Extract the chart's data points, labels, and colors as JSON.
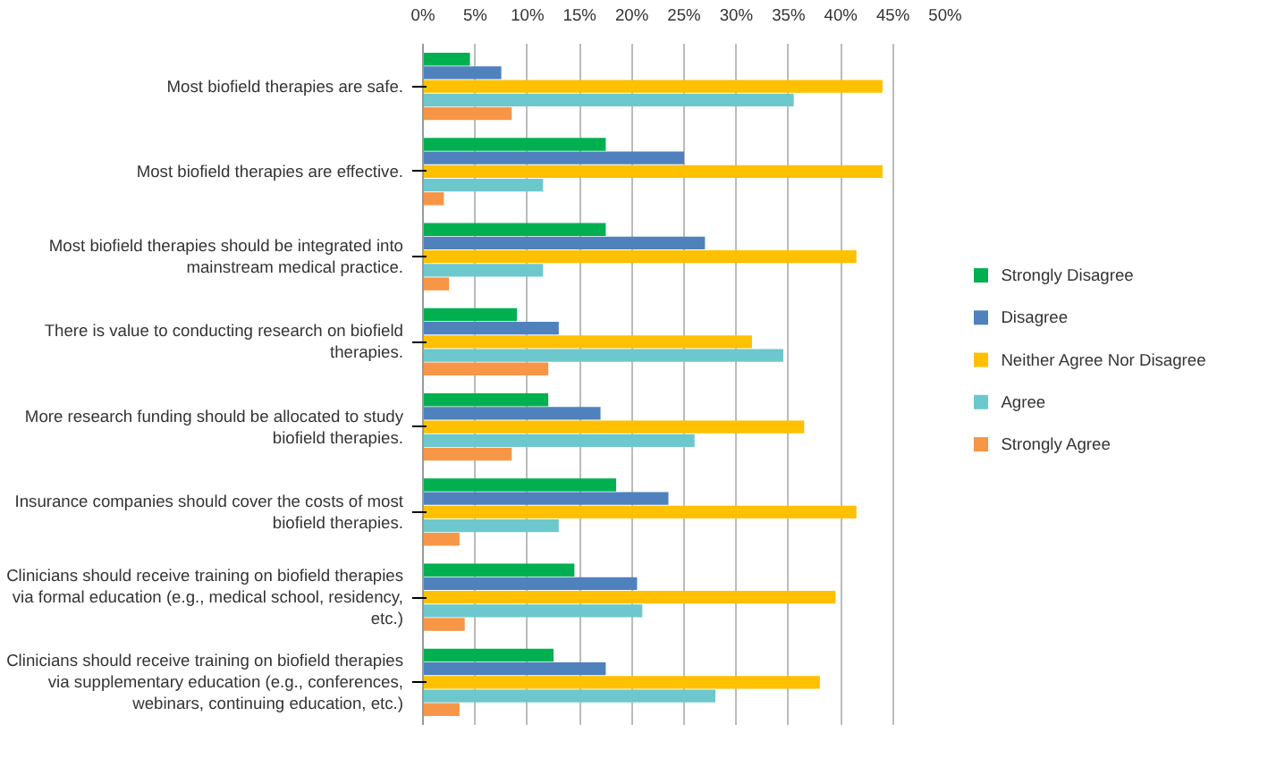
{
  "chart_data": {
    "type": "bar",
    "orientation": "horizontal",
    "categories": [
      "Most biofield therapies are safe.",
      "Most biofield therapies are effective.",
      "Most biofield therapies should be integrated into mainstream medical practice.",
      "There is value to conducting research on biofield therapies.",
      "More research funding should be allocated to study biofield therapies.",
      "Insurance companies should cover the costs of most biofield therapies.",
      "Clinicians should receive training on biofield therapies via formal education (e.g., medical school, residency, etc.)",
      "Clinicians should receive training on biofield therapies via supplementary education (e.g., conferences, webinars, continuing education, etc.)"
    ],
    "series": [
      {
        "name": "Strongly Disagree",
        "color": "#00b050",
        "values": [
          4.5,
          17.5,
          17.5,
          9,
          12,
          18.5,
          14.5,
          12.5
        ]
      },
      {
        "name": "Disagree",
        "color": "#4f81bd",
        "values": [
          7.5,
          25,
          27,
          13,
          17,
          23.5,
          20.5,
          17.5
        ]
      },
      {
        "name": "Neither Agree Nor Disagree",
        "color": "#ffc000",
        "values": [
          44,
          44,
          41.5,
          31.5,
          36.5,
          41.5,
          39.5,
          38
        ]
      },
      {
        "name": "Agree",
        "color": "#6cc8cc",
        "values": [
          35.5,
          11.5,
          11.5,
          34.5,
          26,
          13,
          21,
          28
        ]
      },
      {
        "name": "Strongly Agree",
        "color": "#f79646",
        "values": [
          8.5,
          2,
          2.5,
          12,
          8.5,
          3.5,
          4,
          3.5
        ]
      }
    ],
    "xlim": [
      0,
      50
    ],
    "xticks": [
      {
        "value": 0,
        "label": "0%"
      },
      {
        "value": 5,
        "label": "5%"
      },
      {
        "value": 10,
        "label": "10%"
      },
      {
        "value": 15,
        "label": "15%"
      },
      {
        "value": 20,
        "label": "20%"
      },
      {
        "value": 25,
        "label": "25%"
      },
      {
        "value": 30,
        "label": "30%"
      },
      {
        "value": 35,
        "label": "35%"
      },
      {
        "value": 40,
        "label": "40%"
      },
      {
        "value": 45,
        "label": "45%"
      },
      {
        "value": 50,
        "label": "50%"
      }
    ],
    "grid": "x",
    "legend": "right"
  }
}
